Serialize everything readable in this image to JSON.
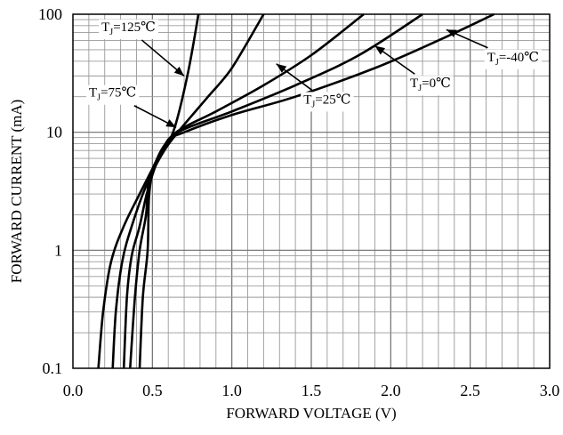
{
  "chart_data": {
    "type": "line",
    "title": "",
    "xlabel": "FORWARD VOLTAGE (V)",
    "ylabel": "FORWARD CURRENT (mA)",
    "xlim": [
      0,
      3.0
    ],
    "ylim": [
      0.1,
      100
    ],
    "yscale": "log",
    "grid": true,
    "legend": "none (curves labeled with callouts)",
    "x_ticks": [
      "0.0",
      "0.5",
      "1.0",
      "1.5",
      "2.0",
      "2.5",
      "3.0"
    ],
    "y_ticks": [
      "0.1",
      "1",
      "10",
      "100"
    ],
    "series": [
      {
        "name": "TJ=125℃",
        "label": {
          "main": "T",
          "sub": "J",
          "rest": "=125℃"
        },
        "points": [
          [
            0.16,
            0.1
          ],
          [
            0.19,
            0.3
          ],
          [
            0.24,
            0.8
          ],
          [
            0.32,
            1.6
          ],
          [
            0.42,
            3.0
          ],
          [
            0.52,
            5.5
          ],
          [
            0.63,
            10
          ],
          [
            0.72,
            30
          ],
          [
            0.79,
            100
          ]
        ]
      },
      {
        "name": "TJ=75℃",
        "label": {
          "main": "T",
          "sub": "J",
          "rest": "=75℃"
        },
        "points": [
          [
            0.25,
            0.1
          ],
          [
            0.27,
            0.3
          ],
          [
            0.31,
            0.8
          ],
          [
            0.37,
            1.6
          ],
          [
            0.46,
            3.5
          ],
          [
            0.56,
            6.5
          ],
          [
            0.66,
            10
          ],
          [
            0.85,
            20
          ],
          [
            1.0,
            35
          ],
          [
            1.2,
            100
          ]
        ]
      },
      {
        "name": "TJ=25℃",
        "label": {
          "main": "T",
          "sub": "J",
          "rest": "=25℃"
        },
        "points": [
          [
            0.32,
            0.1
          ],
          [
            0.34,
            0.4
          ],
          [
            0.37,
            0.9
          ],
          [
            0.42,
            1.6
          ],
          [
            0.47,
            3.2
          ],
          [
            0.55,
            6.5
          ],
          [
            0.65,
            10
          ],
          [
            0.9,
            15
          ],
          [
            1.2,
            25
          ],
          [
            1.5,
            45
          ],
          [
            1.83,
            100
          ]
        ]
      },
      {
        "name": "TJ=0℃",
        "label": {
          "main": "T",
          "sub": "J",
          "rest": "=0℃"
        },
        "points": [
          [
            0.36,
            0.1
          ],
          [
            0.39,
            0.4
          ],
          [
            0.42,
            1.0
          ],
          [
            0.46,
            2.0
          ],
          [
            0.48,
            4.0
          ],
          [
            0.56,
            7.0
          ],
          [
            0.66,
            10
          ],
          [
            1.0,
            15
          ],
          [
            1.4,
            25
          ],
          [
            1.8,
            45
          ],
          [
            2.2,
            100
          ]
        ]
      },
      {
        "name": "TJ=-40℃",
        "label": {
          "main": "T",
          "sub": "J",
          "rest": "=-40℃"
        },
        "points": [
          [
            0.42,
            0.1
          ],
          [
            0.44,
            0.4
          ],
          [
            0.47,
            1.0
          ],
          [
            0.48,
            3.0
          ],
          [
            0.52,
            5.5
          ],
          [
            0.6,
            8.5
          ],
          [
            0.7,
            10
          ],
          [
            1.0,
            14
          ],
          [
            1.4,
            20
          ],
          [
            1.9,
            35
          ],
          [
            2.3,
            60
          ],
          [
            2.65,
            100
          ]
        ]
      }
    ],
    "annotations": [
      {
        "series": 0,
        "text_at": [
          0.35,
          72
        ],
        "arrow_to": [
          0.7,
          30
        ]
      },
      {
        "series": 1,
        "text_at": [
          0.25,
          20
        ],
        "arrow_to": [
          0.65,
          11
        ]
      },
      {
        "series": 2,
        "text_at": [
          1.6,
          17.5
        ],
        "arrow_to": [
          1.28,
          38
        ]
      },
      {
        "series": 3,
        "text_at": [
          2.25,
          24
        ],
        "arrow_to": [
          1.9,
          54
        ]
      },
      {
        "series": 4,
        "text_at": [
          2.77,
          40
        ],
        "arrow_to": [
          2.35,
          74
        ]
      }
    ]
  }
}
